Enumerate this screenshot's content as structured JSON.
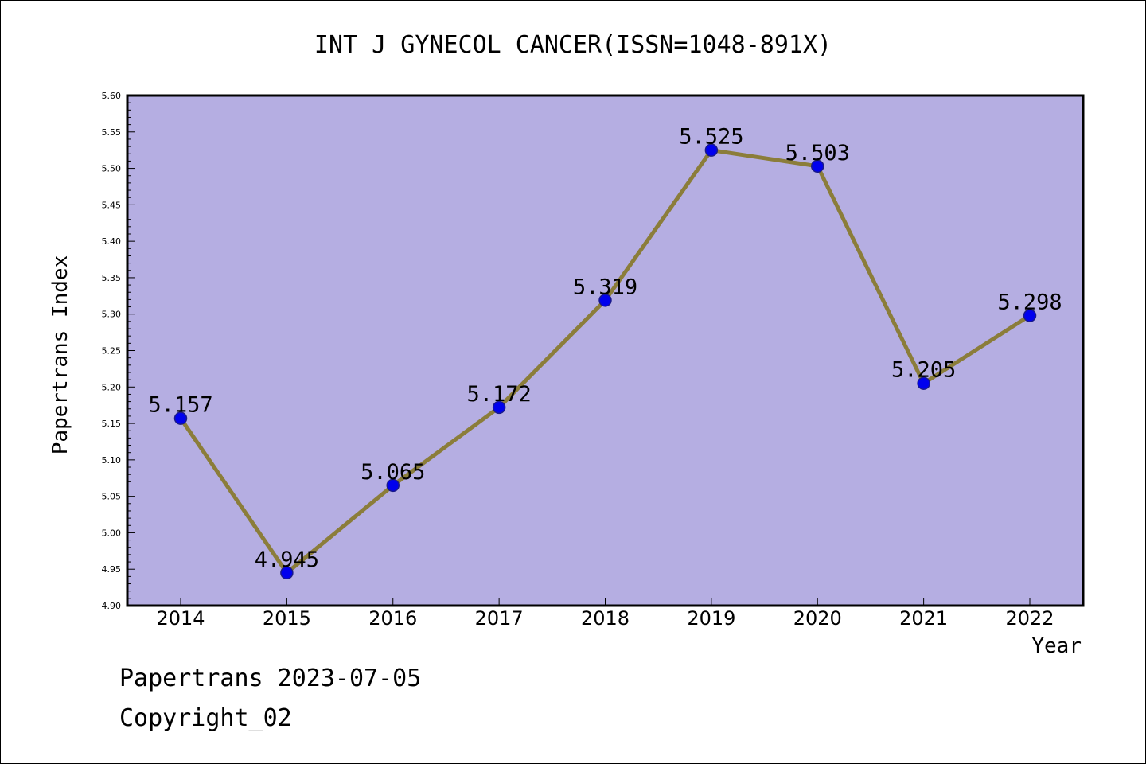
{
  "chart_data": {
    "type": "line",
    "title": "INT J GYNECOL CANCER(ISSN=1048-891X)",
    "xlabel": "Year",
    "ylabel": "Papertrans Index",
    "categories": [
      "2014",
      "2015",
      "2016",
      "2017",
      "2018",
      "2019",
      "2020",
      "2021",
      "2022"
    ],
    "series": [
      {
        "values": [
          5.157,
          4.945,
          5.065,
          5.172,
          5.319,
          5.525,
          5.503,
          5.205,
          5.298
        ]
      }
    ],
    "data_labels": [
      "5.157",
      "4.945",
      "5.065",
      "5.172",
      "5.319",
      "5.525",
      "5.503",
      "5.205",
      "5.298"
    ],
    "ylim": [
      4.9,
      5.6
    ],
    "yticks": [
      "4.90",
      "4.95",
      "5.00",
      "5.05",
      "5.10",
      "5.15",
      "5.20",
      "5.25",
      "5.30",
      "5.35",
      "5.40",
      "5.45",
      "5.50",
      "5.55",
      "5.60"
    ],
    "grid": false,
    "legend": "none",
    "colors": {
      "plot_background": "#b5aee2",
      "line": "#8b7d3a",
      "marker": "#0000ee",
      "marker_edge": "#1a1a8a"
    }
  },
  "footer": {
    "line1": "Papertrans 2023-07-05",
    "line2": "Copyright_02"
  }
}
